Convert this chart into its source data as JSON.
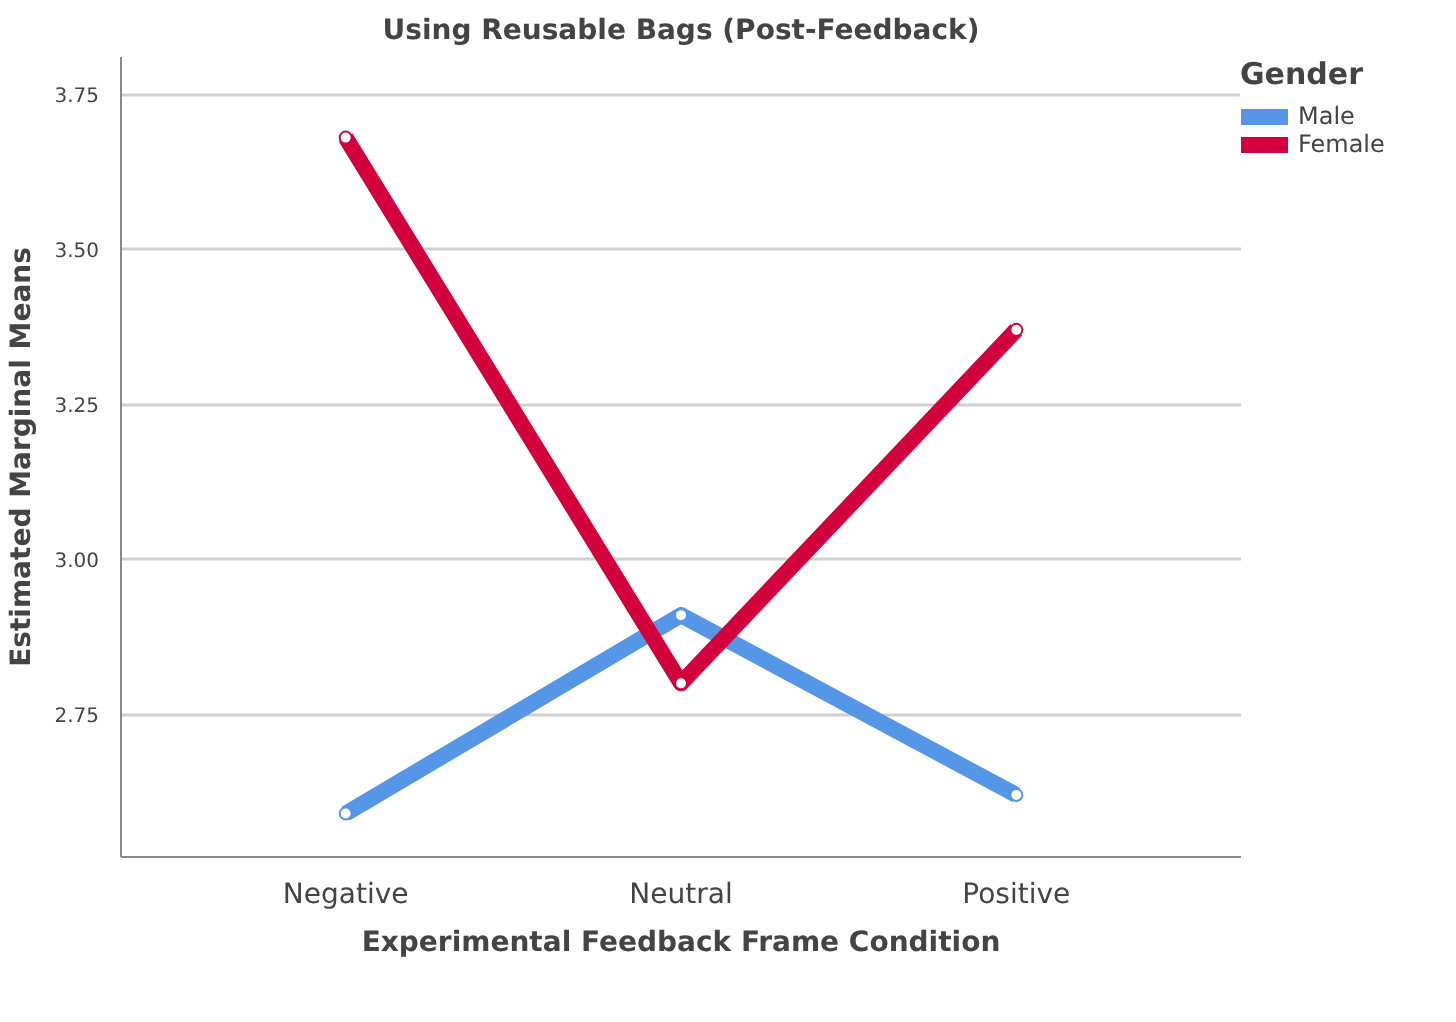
{
  "chart_data": {
    "type": "line",
    "title": "Using Reusable Bags (Post-Feedback)",
    "xlabel": "Experimental Feedback Frame Condition",
    "ylabel": "Estimated Marginal Means",
    "legend_title": "Gender",
    "categories": [
      "Negative",
      "Neutral",
      "Positive"
    ],
    "series": [
      {
        "name": "Male",
        "color": "#5596e6",
        "values": [
          2.59,
          2.91,
          2.62
        ]
      },
      {
        "name": "Female",
        "color": "#d2003c",
        "values": [
          3.68,
          2.8,
          3.37
        ]
      }
    ],
    "ylim": [
      2.52,
      3.81
    ],
    "yticks": [
      {
        "value": 2.75,
        "label": "2.75"
      },
      {
        "value": 3.0,
        "label": "3.00"
      },
      {
        "value": 3.25,
        "label": "3.25"
      },
      {
        "value": 3.5,
        "label": "3.50"
      },
      {
        "value": 3.75,
        "label": "3.75"
      }
    ],
    "grid": "y",
    "legend": "top right",
    "marker": "circle",
    "line_style": "solid"
  }
}
